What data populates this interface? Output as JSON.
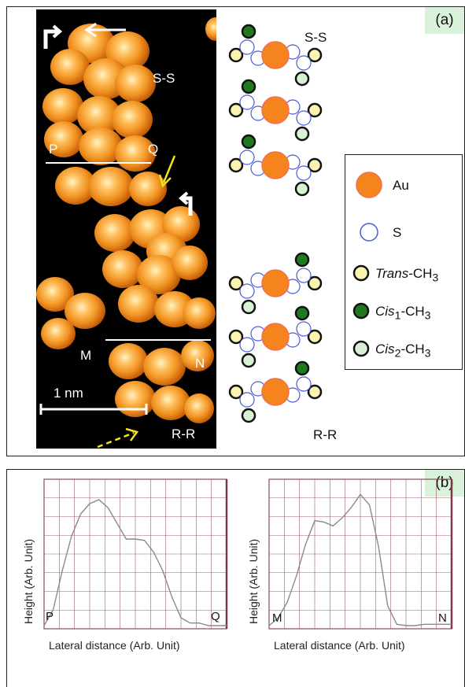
{
  "panel_a": {
    "tag": "(a)",
    "stm": {
      "label_ss": "S-S",
      "label_rr": "R-R",
      "label_p": "P",
      "label_q": "Q",
      "label_m": "M",
      "label_n": "N",
      "scale_bar": "1 nm"
    },
    "schematic": {
      "label_ss": "S-S",
      "label_rr": "R-R"
    },
    "legend": {
      "items": [
        {
          "name": "au",
          "text": "Au",
          "fill": "#f5841f",
          "stroke": "#f07050"
        },
        {
          "name": "s",
          "text": "S",
          "fill": "#ffffff",
          "stroke": "#4a5bd6"
        },
        {
          "name": "trans",
          "italic": "Trans",
          "rest": "-CH",
          "sub": "3",
          "fill": "#fbf3b0",
          "stroke": "#111111"
        },
        {
          "name": "cis1",
          "italic": "Cis",
          "isub": "1",
          "rest": "-CH",
          "sub": "3",
          "fill": "#1f7a1f",
          "stroke": "#111111"
        },
        {
          "name": "cis2",
          "italic": "Cis",
          "isub": "2",
          "rest": "-CH",
          "sub": "3",
          "fill": "#d6f2d2",
          "stroke": "#111111"
        }
      ]
    }
  },
  "panel_b": {
    "tag": "(b)",
    "chart_data": [
      {
        "type": "line",
        "xlabel": "Lateral distance (Arb. Unit)",
        "ylabel": "Height (Arb. Unit)",
        "start_label": "P",
        "end_label": "Q",
        "x": [
          0,
          0.05,
          0.1,
          0.15,
          0.2,
          0.25,
          0.3,
          0.35,
          0.4,
          0.45,
          0.5,
          0.55,
          0.6,
          0.65,
          0.7,
          0.75,
          0.8,
          0.85,
          0.9,
          0.95,
          1.0
        ],
        "y": [
          0.0,
          0.12,
          0.42,
          0.68,
          0.85,
          0.93,
          0.96,
          0.9,
          0.78,
          0.66,
          0.66,
          0.65,
          0.56,
          0.42,
          0.22,
          0.06,
          0.02,
          0.02,
          0.0,
          0.0,
          0.0
        ],
        "xlim": [
          0,
          1
        ],
        "ylim": [
          0,
          1.08
        ],
        "grid": true
      },
      {
        "type": "line",
        "xlabel": "Lateral distance (Arb. Unit)",
        "ylabel": "Height (Arb. Unit)",
        "start_label": "M",
        "end_label": "N",
        "x": [
          0,
          0.05,
          0.1,
          0.15,
          0.2,
          0.25,
          0.3,
          0.35,
          0.4,
          0.45,
          0.5,
          0.55,
          0.6,
          0.65,
          0.7,
          0.75,
          0.8,
          0.85,
          0.9,
          0.95,
          1.0
        ],
        "y": [
          0.0,
          0.06,
          0.18,
          0.38,
          0.62,
          0.8,
          0.79,
          0.76,
          0.82,
          0.9,
          1.0,
          0.92,
          0.6,
          0.15,
          0.01,
          0.0,
          0.0,
          0.01,
          0.01,
          0.01,
          0.01
        ],
        "xlim": [
          0,
          1
        ],
        "ylim": [
          0,
          1.08
        ],
        "grid": true
      }
    ]
  }
}
